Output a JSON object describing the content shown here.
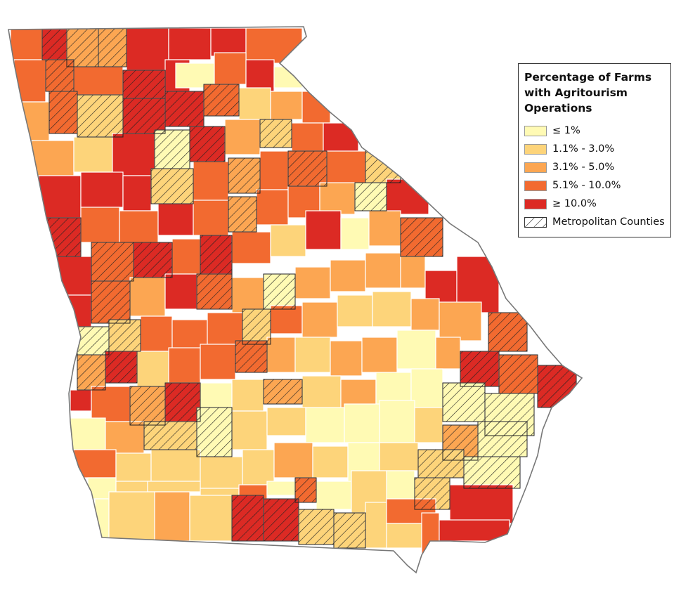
{
  "legend": {
    "title_lines": [
      "Percentage of Farms",
      "with Agritourism",
      "Operations"
    ],
    "items": [
      {
        "label": "≤ 1%",
        "color": "#FFFAB4"
      },
      {
        "label": "1.1% - 3.0%",
        "color": "#FDD47A"
      },
      {
        "label": "3.1% - 5.0%",
        "color": "#FCA652"
      },
      {
        "label": "5.1% - 10.0%",
        "color": "#F26A30"
      },
      {
        "label": "≥ 10.0%",
        "color": "#DC2A24"
      }
    ],
    "metro_label": "Metropolitan Counties"
  },
  "colors": {
    "border": "#ffffff",
    "state_outline": "#666666",
    "metro_outline": "#222222"
  }
}
